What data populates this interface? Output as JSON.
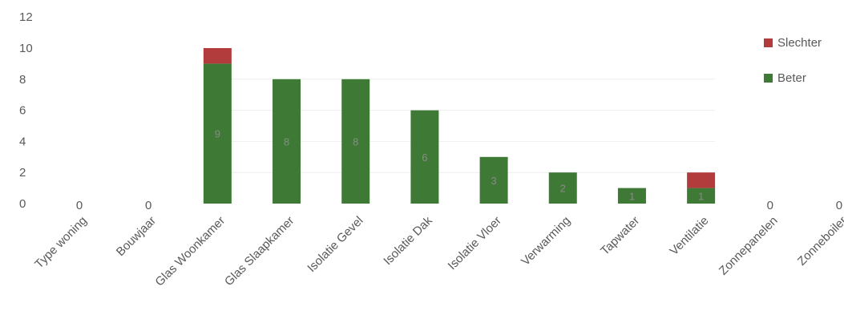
{
  "chart_data": {
    "type": "bar",
    "stacked": true,
    "categories": [
      "Type woning",
      "Bouwjaar",
      "Glas Woonkamer",
      "Glas Slaapkamer",
      "Isolatie Gevel",
      "Isolatie Dak",
      "Isolatie Vloer",
      "Verwarming",
      "Tapwater",
      "Ventilatie",
      "Zonnepanelen",
      "Zonneboiler"
    ],
    "series": [
      {
        "name": "Beter",
        "color": "#3e7a35",
        "values": [
          0,
          0,
          9,
          8,
          8,
          6,
          3,
          2,
          1,
          1,
          0,
          0
        ]
      },
      {
        "name": "Slechter",
        "color": "#b23b3b",
        "values": [
          0,
          0,
          1,
          0,
          0,
          0,
          0,
          0,
          0,
          1,
          0,
          0
        ]
      }
    ],
    "data_labels": [
      "0",
      "0",
      "9",
      "8",
      "8",
      "6",
      "3",
      "2",
      "1",
      "1",
      "0",
      "0"
    ],
    "yticks": [
      "0",
      "2",
      "4",
      "6",
      "8",
      "10",
      "12"
    ],
    "ylim": [
      0,
      12
    ],
    "grid": true,
    "legend": {
      "placement": "right",
      "order": [
        "Slechter",
        "Beter"
      ]
    },
    "title": "",
    "xlabel": "",
    "ylabel": ""
  }
}
